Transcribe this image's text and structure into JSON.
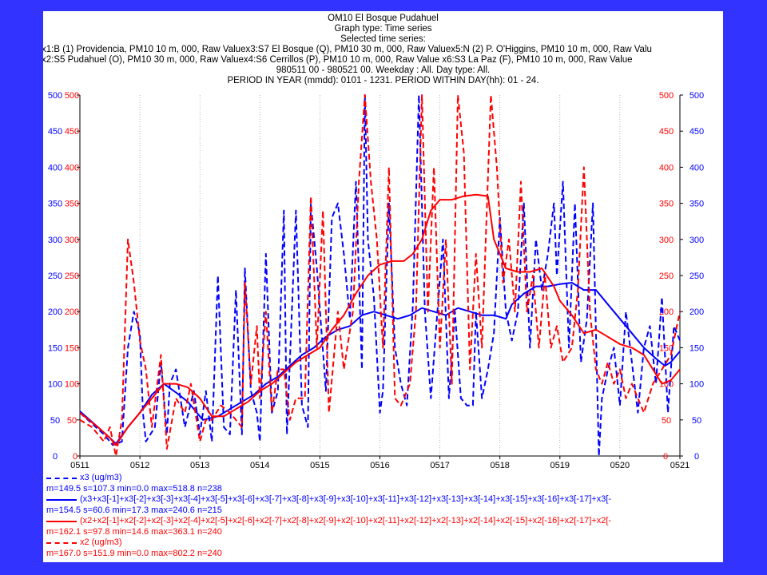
{
  "header": {
    "line1": "OM10 El Bosque Pudahuel",
    "line2": "Graph type: Time series",
    "line3": "Selected time series:",
    "line4": "x1:B (1) Providencia, PM10 10 m, 000, Raw Valuex3:S7 El Bosque (Q), PM10 30 m, 000, Raw Valuex5:N (2) P. O'Higgins, PM10 10 m, 000, Raw Valu",
    "line5": "x2:S5 Pudahuel (O), PM10 30 m, 000, Raw Valuex4:S6 Cerrillos (P), PM10 10 m, 000, Raw Value   x6:S3 La Paz (F), PM10 10 m, 000, Raw Value",
    "line6": "980511 00 - 980521 00. Weekday : All. Day type: All.",
    "line7": "PERIOD IN YEAR (mmdd): 0101 - 1231. PERIOD WITHIN DAY(hh): 01 - 24."
  },
  "legend": {
    "x3_label": "x3 (ug/m3)",
    "x3_stats": "m=149.5 s=107.3 min=0.0 max=518.8 n=238",
    "x3ma_label": "(x3+x3[-1]+x3[-2]+x3[-3]+x3[-4]+x3[-5]+x3[-6]+x3[-7]+x3[-8]+x3[-9]+x3[-10]+x3[-11]+x3[-12]+x3[-13]+x3[-14]+x3[-15]+x3[-16]+x3[-17]+x3[-",
    "x3ma_stats": "m=154.5 s=60.6 min=17.3 max=240.6 n=215",
    "x2ma_label": "(x2+x2[-1]+x2[-2]+x2[-3]+x2[-4]+x2[-5]+x2[-6]+x2[-7]+x2[-8]+x2[-9]+x2[-10]+x2[-11]+x2[-12]+x2[-13]+x2[-14]+x2[-15]+x2[-16]+x2[-17]+x2[-",
    "x2ma_stats": "m=162.1 s=97.8 min=14.6 max=363.1 n=240",
    "x2_label": "x2 (ug/m3)",
    "x2_stats": "m=167.0 s=151.9 min=0.0 max=802.2 n=240"
  },
  "colors": {
    "blue": "#0000ff",
    "red": "#ff0000",
    "frame": "#3333ff"
  },
  "chart_data": {
    "type": "line",
    "x_ticks": [
      "0511",
      "0512",
      "0513",
      "0514",
      "0515",
      "0516",
      "0517",
      "0518",
      "0519",
      "0520",
      "0521"
    ],
    "y_ticks": [
      0,
      50,
      100,
      150,
      200,
      250,
      300,
      350,
      400,
      450,
      500
    ],
    "ylim": [
      0,
      500
    ],
    "series": [
      {
        "name": "x3 (ug/m3)",
        "color": "blue",
        "dash": true,
        "points": [
          [
            0,
            60
          ],
          [
            0.2,
            45
          ],
          [
            0.4,
            30
          ],
          [
            0.55,
            15
          ],
          [
            0.7,
            20
          ],
          [
            0.8,
            150
          ],
          [
            0.9,
            200
          ],
          [
            1.0,
            170
          ],
          [
            1.05,
            60
          ],
          [
            1.1,
            20
          ],
          [
            1.25,
            40
          ],
          [
            1.35,
            130
          ],
          [
            1.45,
            30
          ],
          [
            1.5,
            100
          ],
          [
            1.6,
            120
          ],
          [
            1.75,
            40
          ],
          [
            1.9,
            90
          ],
          [
            2.0,
            30
          ],
          [
            2.1,
            90
          ],
          [
            2.2,
            20
          ],
          [
            2.3,
            250
          ],
          [
            2.4,
            40
          ],
          [
            2.5,
            30
          ],
          [
            2.6,
            230
          ],
          [
            2.7,
            30
          ],
          [
            2.75,
            260
          ],
          [
            2.85,
            90
          ],
          [
            2.95,
            60
          ],
          [
            3.0,
            20
          ],
          [
            3.1,
            280
          ],
          [
            3.2,
            60
          ],
          [
            3.3,
            90
          ],
          [
            3.4,
            340
          ],
          [
            3.45,
            30
          ],
          [
            3.6,
            340
          ],
          [
            3.7,
            70
          ],
          [
            3.8,
            40
          ],
          [
            3.85,
            350
          ],
          [
            3.95,
            260
          ],
          [
            4.1,
            90
          ],
          [
            4.2,
            330
          ],
          [
            4.3,
            350
          ],
          [
            4.4,
            280
          ],
          [
            4.5,
            190
          ],
          [
            4.6,
            380
          ],
          [
            4.7,
            120
          ],
          [
            4.75,
            500
          ],
          [
            4.8,
            300
          ],
          [
            4.9,
            220
          ],
          [
            5.0,
            60
          ],
          [
            5.05,
            90
          ],
          [
            5.15,
            350
          ],
          [
            5.25,
            150
          ],
          [
            5.35,
            100
          ],
          [
            5.45,
            70
          ],
          [
            5.55,
            210
          ],
          [
            5.65,
            500
          ],
          [
            5.75,
            200
          ],
          [
            5.85,
            80
          ],
          [
            5.95,
            190
          ],
          [
            6.05,
            300
          ],
          [
            6.15,
            80
          ],
          [
            6.25,
            200
          ],
          [
            6.35,
            80
          ],
          [
            6.45,
            70
          ],
          [
            6.55,
            70
          ],
          [
            6.6,
            200
          ],
          [
            6.7,
            80
          ],
          [
            6.8,
            120
          ],
          [
            6.9,
            170
          ],
          [
            7.0,
            330
          ],
          [
            7.1,
            200
          ],
          [
            7.2,
            160
          ],
          [
            7.3,
            200
          ],
          [
            7.4,
            350
          ],
          [
            7.5,
            150
          ],
          [
            7.6,
            300
          ],
          [
            7.7,
            230
          ],
          [
            7.8,
            280
          ],
          [
            7.9,
            350
          ],
          [
            7.95,
            250
          ],
          [
            8.05,
            380
          ],
          [
            8.15,
            150
          ],
          [
            8.25,
            350
          ],
          [
            8.35,
            130
          ],
          [
            8.45,
            190
          ],
          [
            8.55,
            350
          ],
          [
            8.65,
            0
          ],
          [
            8.7,
            80
          ],
          [
            8.8,
            120
          ],
          [
            8.9,
            150
          ],
          [
            9.0,
            70
          ],
          [
            9.1,
            200
          ],
          [
            9.2,
            130
          ],
          [
            9.3,
            60
          ],
          [
            9.4,
            150
          ],
          [
            9.5,
            180
          ],
          [
            9.6,
            100
          ],
          [
            9.7,
            220
          ],
          [
            9.8,
            60
          ],
          [
            9.9,
            180
          ],
          [
            10.0,
            160
          ]
        ]
      },
      {
        "name": "x3 moving average",
        "color": "blue",
        "dash": false,
        "points": [
          [
            0,
            62
          ],
          [
            0.3,
            40
          ],
          [
            0.5,
            25
          ],
          [
            0.6,
            17
          ],
          [
            0.8,
            40
          ],
          [
            1.0,
            60
          ],
          [
            1.2,
            85
          ],
          [
            1.4,
            100
          ],
          [
            1.6,
            88
          ],
          [
            1.8,
            75
          ],
          [
            1.95,
            60
          ],
          [
            2.05,
            50
          ],
          [
            2.3,
            55
          ],
          [
            2.5,
            65
          ],
          [
            2.7,
            75
          ],
          [
            2.9,
            85
          ],
          [
            3.1,
            100
          ],
          [
            3.3,
            110
          ],
          [
            3.5,
            125
          ],
          [
            3.7,
            140
          ],
          [
            3.9,
            150
          ],
          [
            4.1,
            165
          ],
          [
            4.3,
            175
          ],
          [
            4.5,
            180
          ],
          [
            4.7,
            195
          ],
          [
            4.9,
            200
          ],
          [
            5.1,
            195
          ],
          [
            5.3,
            190
          ],
          [
            5.5,
            195
          ],
          [
            5.7,
            205
          ],
          [
            5.9,
            200
          ],
          [
            6.1,
            195
          ],
          [
            6.3,
            205
          ],
          [
            6.5,
            200
          ],
          [
            6.7,
            195
          ],
          [
            6.9,
            195
          ],
          [
            7.1,
            190
          ],
          [
            7.2,
            210
          ],
          [
            7.4,
            225
          ],
          [
            7.6,
            235
          ],
          [
            7.8,
            235
          ],
          [
            8.0,
            238
          ],
          [
            8.2,
            240
          ],
          [
            8.4,
            230
          ],
          [
            8.6,
            230
          ],
          [
            8.8,
            210
          ],
          [
            9.0,
            190
          ],
          [
            9.2,
            170
          ],
          [
            9.4,
            150
          ],
          [
            9.6,
            135
          ],
          [
            9.75,
            125
          ],
          [
            9.85,
            130
          ],
          [
            10.0,
            145
          ]
        ]
      },
      {
        "name": "x2 moving average",
        "color": "red",
        "dash": false,
        "points": [
          [
            0,
            60
          ],
          [
            0.3,
            40
          ],
          [
            0.5,
            25
          ],
          [
            0.6,
            15
          ],
          [
            0.8,
            40
          ],
          [
            1.0,
            60
          ],
          [
            1.2,
            80
          ],
          [
            1.4,
            100
          ],
          [
            1.6,
            100
          ],
          [
            1.8,
            95
          ],
          [
            2.0,
            80
          ],
          [
            2.2,
            55
          ],
          [
            2.4,
            55
          ],
          [
            2.6,
            65
          ],
          [
            2.8,
            75
          ],
          [
            3.0,
            90
          ],
          [
            3.2,
            100
          ],
          [
            3.4,
            115
          ],
          [
            3.6,
            130
          ],
          [
            3.8,
            140
          ],
          [
            4.0,
            150
          ],
          [
            4.2,
            175
          ],
          [
            4.4,
            195
          ],
          [
            4.6,
            225
          ],
          [
            4.8,
            250
          ],
          [
            5.0,
            265
          ],
          [
            5.2,
            270
          ],
          [
            5.4,
            270
          ],
          [
            5.55,
            280
          ],
          [
            5.7,
            300
          ],
          [
            5.85,
            340
          ],
          [
            6.0,
            355
          ],
          [
            6.2,
            355
          ],
          [
            6.4,
            360
          ],
          [
            6.6,
            362
          ],
          [
            6.8,
            360
          ],
          [
            6.9,
            300
          ],
          [
            7.0,
            280
          ],
          [
            7.1,
            260
          ],
          [
            7.3,
            255
          ],
          [
            7.5,
            255
          ],
          [
            7.7,
            260
          ],
          [
            7.9,
            235
          ],
          [
            8.0,
            215
          ],
          [
            8.2,
            195
          ],
          [
            8.4,
            170
          ],
          [
            8.6,
            175
          ],
          [
            8.8,
            165
          ],
          [
            9.0,
            155
          ],
          [
            9.2,
            150
          ],
          [
            9.4,
            140
          ],
          [
            9.55,
            120
          ],
          [
            9.7,
            100
          ],
          [
            9.85,
            105
          ],
          [
            10.0,
            120
          ]
        ]
      },
      {
        "name": "x2 (ug/m3)",
        "color": "red",
        "dash": true,
        "points": [
          [
            0,
            50
          ],
          [
            0.2,
            40
          ],
          [
            0.4,
            20
          ],
          [
            0.5,
            40
          ],
          [
            0.6,
            0
          ],
          [
            0.7,
            50
          ],
          [
            0.8,
            300
          ],
          [
            0.9,
            240
          ],
          [
            1.0,
            160
          ],
          [
            1.1,
            120
          ],
          [
            1.2,
            40
          ],
          [
            1.35,
            140
          ],
          [
            1.45,
            10
          ],
          [
            1.6,
            80
          ],
          [
            1.75,
            60
          ],
          [
            1.85,
            100
          ],
          [
            2.0,
            20
          ],
          [
            2.1,
            50
          ],
          [
            2.2,
            50
          ],
          [
            2.35,
            70
          ],
          [
            2.5,
            60
          ],
          [
            2.7,
            40
          ],
          [
            2.75,
            240
          ],
          [
            2.85,
            100
          ],
          [
            2.95,
            180
          ],
          [
            3.0,
            80
          ],
          [
            3.1,
            200
          ],
          [
            3.2,
            60
          ],
          [
            3.3,
            120
          ],
          [
            3.4,
            120
          ],
          [
            3.5,
            50
          ],
          [
            3.6,
            80
          ],
          [
            3.75,
            80
          ],
          [
            3.85,
            360
          ],
          [
            3.95,
            150
          ],
          [
            4.05,
            340
          ],
          [
            4.15,
            60
          ],
          [
            4.3,
            200
          ],
          [
            4.4,
            120
          ],
          [
            4.55,
            200
          ],
          [
            4.65,
            380
          ],
          [
            4.75,
            520
          ],
          [
            4.85,
            380
          ],
          [
            4.95,
            300
          ],
          [
            5.05,
            150
          ],
          [
            5.15,
            400
          ],
          [
            5.25,
            80
          ],
          [
            5.35,
            70
          ],
          [
            5.5,
            100
          ],
          [
            5.6,
            200
          ],
          [
            5.7,
            500
          ],
          [
            5.8,
            200
          ],
          [
            5.9,
            400
          ],
          [
            6.0,
            150
          ],
          [
            6.1,
            300
          ],
          [
            6.2,
            100
          ],
          [
            6.3,
            520
          ],
          [
            6.4,
            420
          ],
          [
            6.5,
            120
          ],
          [
            6.6,
            280
          ],
          [
            6.7,
            150
          ],
          [
            6.85,
            520
          ],
          [
            6.95,
            400
          ],
          [
            7.05,
            240
          ],
          [
            7.15,
            300
          ],
          [
            7.25,
            200
          ],
          [
            7.35,
            380
          ],
          [
            7.45,
            200
          ],
          [
            7.55,
            250
          ],
          [
            7.65,
            150
          ],
          [
            7.75,
            250
          ],
          [
            7.85,
            150
          ],
          [
            7.95,
            180
          ],
          [
            8.05,
            130
          ],
          [
            8.2,
            150
          ],
          [
            8.3,
            230
          ],
          [
            8.4,
            400
          ],
          [
            8.5,
            200
          ],
          [
            8.6,
            120
          ],
          [
            8.7,
            100
          ],
          [
            8.8,
            130
          ],
          [
            8.9,
            100
          ],
          [
            9.0,
            120
          ],
          [
            9.1,
            80
          ],
          [
            9.2,
            100
          ],
          [
            9.3,
            80
          ],
          [
            9.4,
            60
          ],
          [
            9.55,
            100
          ],
          [
            9.7,
            120
          ],
          [
            9.85,
            140
          ],
          [
            10.0,
            200
          ]
        ]
      }
    ]
  }
}
